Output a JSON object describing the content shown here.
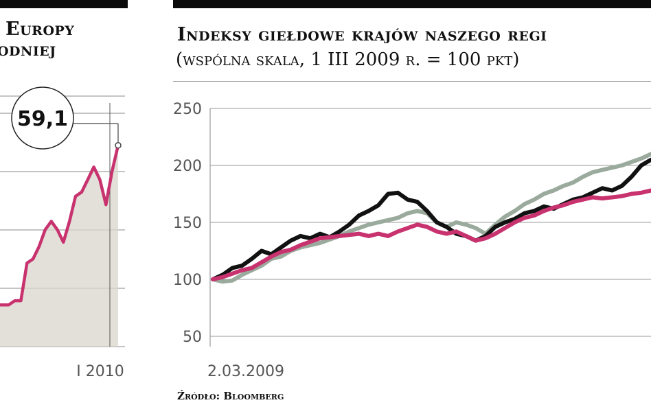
{
  "left_chart": {
    "title_line1": "Europy",
    "title_line2": "odniej",
    "callout": "59,1",
    "x_tick": "I 2010",
    "accent_color": "#c8326e"
  },
  "right_chart": {
    "title": "Indeksy giełdowe krajów naszego regi",
    "subtitle": "(wspólna skala, 1 III 2009 r. = 100 pkt)",
    "y_ticks": [
      "250",
      "200",
      "150",
      "100",
      "50"
    ],
    "x_tick": "2.03.2009",
    "source": "Źródło: Bloomberg"
  },
  "chart_data": [
    {
      "type": "area",
      "title": "Europy odniej",
      "xlabel": "",
      "ylabel": "",
      "x_labels": [
        "I 2010"
      ],
      "annotation": "59,1",
      "ylim": [
        35,
        65
      ],
      "series": [
        {
          "values": [
            40,
            40,
            40,
            40.5,
            40.5,
            45,
            45.5,
            47,
            49,
            50,
            49,
            47.5,
            50,
            53,
            53.5,
            55,
            56.5,
            55,
            52,
            56,
            59.1
          ],
          "color": "#c8326e"
        }
      ]
    },
    {
      "type": "line",
      "title": "Indeksy giełdowe krajów naszego regi",
      "subtitle": "(wspólna skala, 1 III 2009 r. = 100 pkt)",
      "xlabel": "",
      "ylabel": "",
      "x_labels": [
        "2.03.2009"
      ],
      "ylim": [
        50,
        250
      ],
      "y_ticks": [
        50,
        100,
        150,
        200,
        250
      ],
      "grid": true,
      "series": [
        {
          "color": "#111111",
          "values": [
            100,
            104,
            110,
            112,
            118,
            125,
            122,
            128,
            134,
            138,
            136,
            140,
            137,
            142,
            148,
            156,
            160,
            165,
            175,
            176,
            170,
            168,
            160,
            150,
            146,
            140,
            138,
            134,
            138,
            146,
            150,
            153,
            158,
            160,
            164,
            162,
            166,
            170,
            172,
            176,
            180,
            178,
            182,
            190,
            200,
            205
          ]
        },
        {
          "color": "#9aaa9c",
          "values": [
            100,
            98,
            99,
            104,
            108,
            112,
            118,
            120,
            125,
            128,
            130,
            132,
            135,
            138,
            142,
            145,
            148,
            150,
            152,
            154,
            158,
            160,
            158,
            150,
            146,
            150,
            148,
            145,
            140,
            148,
            155,
            160,
            166,
            170,
            175,
            178,
            182,
            185,
            190,
            194,
            196,
            198,
            200,
            203,
            206,
            210
          ]
        },
        {
          "color": "#c8326e",
          "values": [
            100,
            102,
            105,
            108,
            110,
            115,
            120,
            124,
            126,
            130,
            133,
            136,
            137,
            138,
            139,
            140,
            138,
            140,
            138,
            142,
            145,
            148,
            146,
            142,
            140,
            142,
            138,
            134,
            136,
            140,
            145,
            150,
            154,
            156,
            160,
            163,
            165,
            168,
            170,
            172,
            171,
            172,
            173,
            175,
            176,
            178
          ]
        }
      ]
    }
  ]
}
